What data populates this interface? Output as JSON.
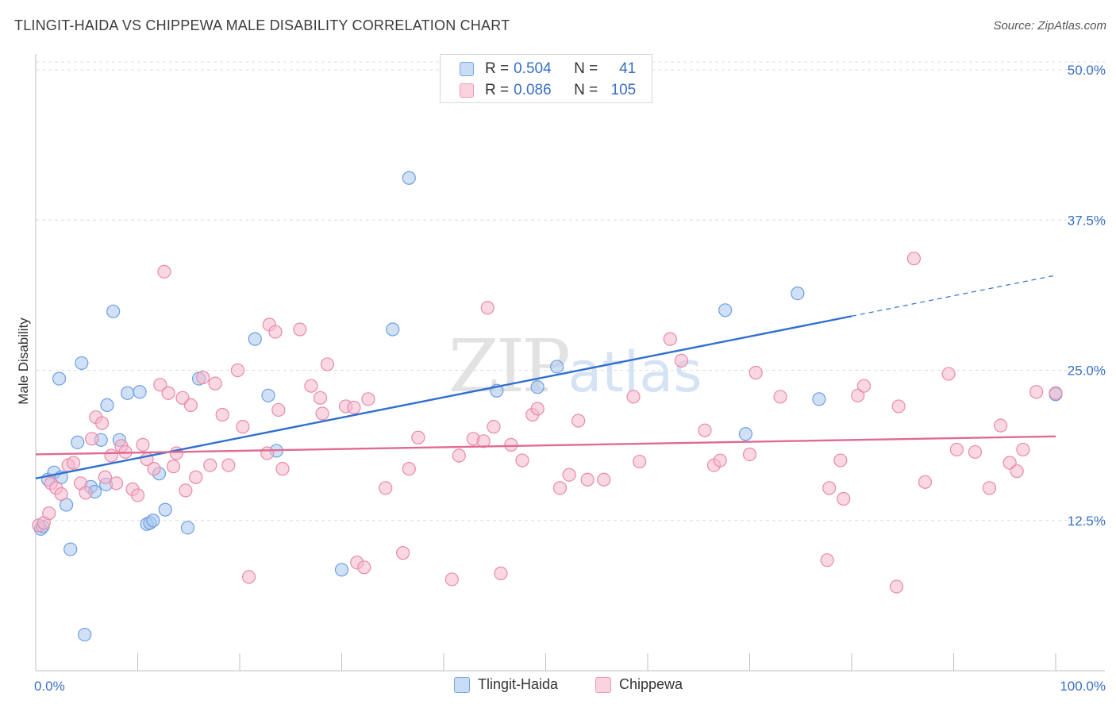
{
  "title": "TLINGIT-HAIDA VS CHIPPEWA MALE DISABILITY CORRELATION CHART",
  "source": "Source: ZipAtlas.com",
  "watermark": {
    "zip": "ZIP",
    "atlas": "atlas"
  },
  "legend_top": {
    "rows": [
      {
        "r_label": "R =",
        "r_value": "0.504",
        "n_label": "N =",
        "n_value": "41",
        "color": "#a9c8f0"
      },
      {
        "r_label": "R =",
        "r_value": "0.086",
        "n_label": "N =",
        "n_value": "105",
        "color": "#f5b8cc"
      }
    ]
  },
  "legend_bottom": [
    {
      "label": "Tlingit-Haida",
      "color": "#a9c8f0"
    },
    {
      "label": "Chippewa",
      "color": "#f5b8cc"
    }
  ],
  "chart_data": {
    "type": "scatter",
    "title": "TLINGIT-HAIDA VS CHIPPEWA MALE DISABILITY CORRELATION CHART",
    "xlabel": "",
    "ylabel": "Male Disability",
    "xlim": [
      0,
      100
    ],
    "ylim": [
      0,
      50
    ],
    "x_tick_labels": [
      "0.0%",
      "100.0%"
    ],
    "y_ticks": [
      12.5,
      25.0,
      37.5,
      50.0
    ],
    "y_tick_labels": [
      "12.5%",
      "25.0%",
      "37.5%",
      "50.0%"
    ],
    "grid": true,
    "series": [
      {
        "name": "Tlingit-Haida",
        "color": "#a9c8f0",
        "stroke": "#6d9fe0",
        "trend_color": "#2f6fd0",
        "trend": {
          "x0": 0,
          "y0": 16.0,
          "x1": 80,
          "y1": 29.5,
          "x_dashed_end": 100,
          "y_dashed_end": 32.9
        },
        "points": [
          [
            0.5,
            11.8
          ],
          [
            0.7,
            12.0
          ],
          [
            1.2,
            15.9
          ],
          [
            1.8,
            16.5
          ],
          [
            2.3,
            24.3
          ],
          [
            2.5,
            16.1
          ],
          [
            3.0,
            13.8
          ],
          [
            3.4,
            10.1
          ],
          [
            4.1,
            19.0
          ],
          [
            4.5,
            25.6
          ],
          [
            4.8,
            3.0
          ],
          [
            5.4,
            15.3
          ],
          [
            5.8,
            14.9
          ],
          [
            6.4,
            19.2
          ],
          [
            6.9,
            15.5
          ],
          [
            7.0,
            22.1
          ],
          [
            7.6,
            29.9
          ],
          [
            8.2,
            19.2
          ],
          [
            9.0,
            23.1
          ],
          [
            10.2,
            23.2
          ],
          [
            10.9,
            12.2
          ],
          [
            11.2,
            12.3
          ],
          [
            11.5,
            12.5
          ],
          [
            12.1,
            16.4
          ],
          [
            12.7,
            13.4
          ],
          [
            14.9,
            11.9
          ],
          [
            16.0,
            24.3
          ],
          [
            21.5,
            27.6
          ],
          [
            22.8,
            22.9
          ],
          [
            23.6,
            18.3
          ],
          [
            30.0,
            8.4
          ],
          [
            35.0,
            28.4
          ],
          [
            36.6,
            41.0
          ],
          [
            45.2,
            23.3
          ],
          [
            49.2,
            23.6
          ],
          [
            51.1,
            25.3
          ],
          [
            67.6,
            30.0
          ],
          [
            69.6,
            19.7
          ],
          [
            74.7,
            31.4
          ],
          [
            76.8,
            22.6
          ],
          [
            100.0,
            23.0
          ]
        ]
      },
      {
        "name": "Chippewa",
        "color": "#f5b8cc",
        "stroke": "#e88aa8",
        "trend_color": "#e06a93",
        "trend": {
          "x0": 0,
          "y0": 18.0,
          "x1": 100,
          "y1": 19.5
        },
        "points": [
          [
            0.3,
            12.1
          ],
          [
            0.8,
            12.3
          ],
          [
            1.3,
            13.1
          ],
          [
            1.5,
            15.6
          ],
          [
            2.0,
            15.2
          ],
          [
            2.5,
            14.7
          ],
          [
            3.2,
            17.1
          ],
          [
            3.7,
            17.3
          ],
          [
            4.4,
            15.6
          ],
          [
            4.9,
            14.8
          ],
          [
            5.5,
            19.3
          ],
          [
            5.9,
            21.1
          ],
          [
            6.5,
            20.6
          ],
          [
            6.8,
            16.1
          ],
          [
            7.4,
            17.9
          ],
          [
            7.9,
            15.6
          ],
          [
            8.4,
            18.7
          ],
          [
            8.8,
            18.2
          ],
          [
            9.5,
            15.1
          ],
          [
            10.0,
            14.6
          ],
          [
            10.5,
            18.8
          ],
          [
            10.9,
            17.6
          ],
          [
            11.6,
            16.8
          ],
          [
            12.2,
            23.8
          ],
          [
            12.6,
            33.2
          ],
          [
            13.0,
            23.1
          ],
          [
            13.5,
            17.0
          ],
          [
            13.8,
            18.1
          ],
          [
            14.4,
            22.7
          ],
          [
            14.7,
            15.0
          ],
          [
            15.2,
            22.1
          ],
          [
            15.7,
            16.1
          ],
          [
            16.4,
            24.4
          ],
          [
            17.1,
            17.1
          ],
          [
            17.6,
            23.9
          ],
          [
            18.3,
            21.3
          ],
          [
            18.9,
            17.1
          ],
          [
            19.8,
            25.0
          ],
          [
            20.3,
            20.3
          ],
          [
            20.9,
            7.8
          ],
          [
            22.7,
            18.1
          ],
          [
            22.9,
            28.8
          ],
          [
            23.5,
            28.2
          ],
          [
            23.8,
            21.7
          ],
          [
            24.2,
            16.8
          ],
          [
            25.9,
            28.4
          ],
          [
            27.0,
            23.7
          ],
          [
            27.9,
            22.7
          ],
          [
            28.1,
            21.4
          ],
          [
            28.6,
            25.5
          ],
          [
            30.4,
            22.0
          ],
          [
            31.2,
            21.9
          ],
          [
            31.5,
            9.0
          ],
          [
            32.2,
            8.6
          ],
          [
            32.6,
            22.6
          ],
          [
            34.3,
            15.2
          ],
          [
            36.0,
            9.8
          ],
          [
            36.6,
            16.8
          ],
          [
            37.5,
            19.4
          ],
          [
            40.8,
            7.6
          ],
          [
            41.5,
            17.9
          ],
          [
            42.9,
            19.3
          ],
          [
            43.9,
            19.1
          ],
          [
            44.3,
            30.2
          ],
          [
            44.9,
            20.3
          ],
          [
            45.6,
            8.1
          ],
          [
            46.6,
            18.8
          ],
          [
            47.7,
            17.5
          ],
          [
            48.7,
            21.3
          ],
          [
            49.2,
            21.8
          ],
          [
            51.4,
            15.2
          ],
          [
            52.3,
            16.3
          ],
          [
            53.2,
            20.8
          ],
          [
            54.1,
            15.9
          ],
          [
            55.7,
            15.9
          ],
          [
            58.6,
            22.8
          ],
          [
            59.2,
            17.4
          ],
          [
            62.2,
            27.6
          ],
          [
            63.3,
            25.8
          ],
          [
            65.6,
            20.0
          ],
          [
            66.5,
            17.1
          ],
          [
            67.1,
            17.5
          ],
          [
            70.0,
            18.0
          ],
          [
            70.6,
            24.8
          ],
          [
            73.0,
            22.8
          ],
          [
            77.6,
            9.2
          ],
          [
            77.8,
            15.2
          ],
          [
            78.9,
            17.5
          ],
          [
            79.2,
            14.3
          ],
          [
            80.6,
            22.9
          ],
          [
            81.2,
            23.7
          ],
          [
            84.4,
            7.0
          ],
          [
            84.6,
            22.0
          ],
          [
            86.1,
            34.3
          ],
          [
            87.2,
            15.7
          ],
          [
            89.5,
            24.7
          ],
          [
            90.3,
            18.4
          ],
          [
            92.1,
            18.2
          ],
          [
            93.5,
            15.2
          ],
          [
            94.6,
            20.4
          ],
          [
            95.5,
            17.3
          ],
          [
            96.2,
            16.6
          ],
          [
            96.8,
            18.4
          ],
          [
            98.1,
            23.2
          ],
          [
            100.0,
            23.1
          ]
        ]
      }
    ]
  }
}
